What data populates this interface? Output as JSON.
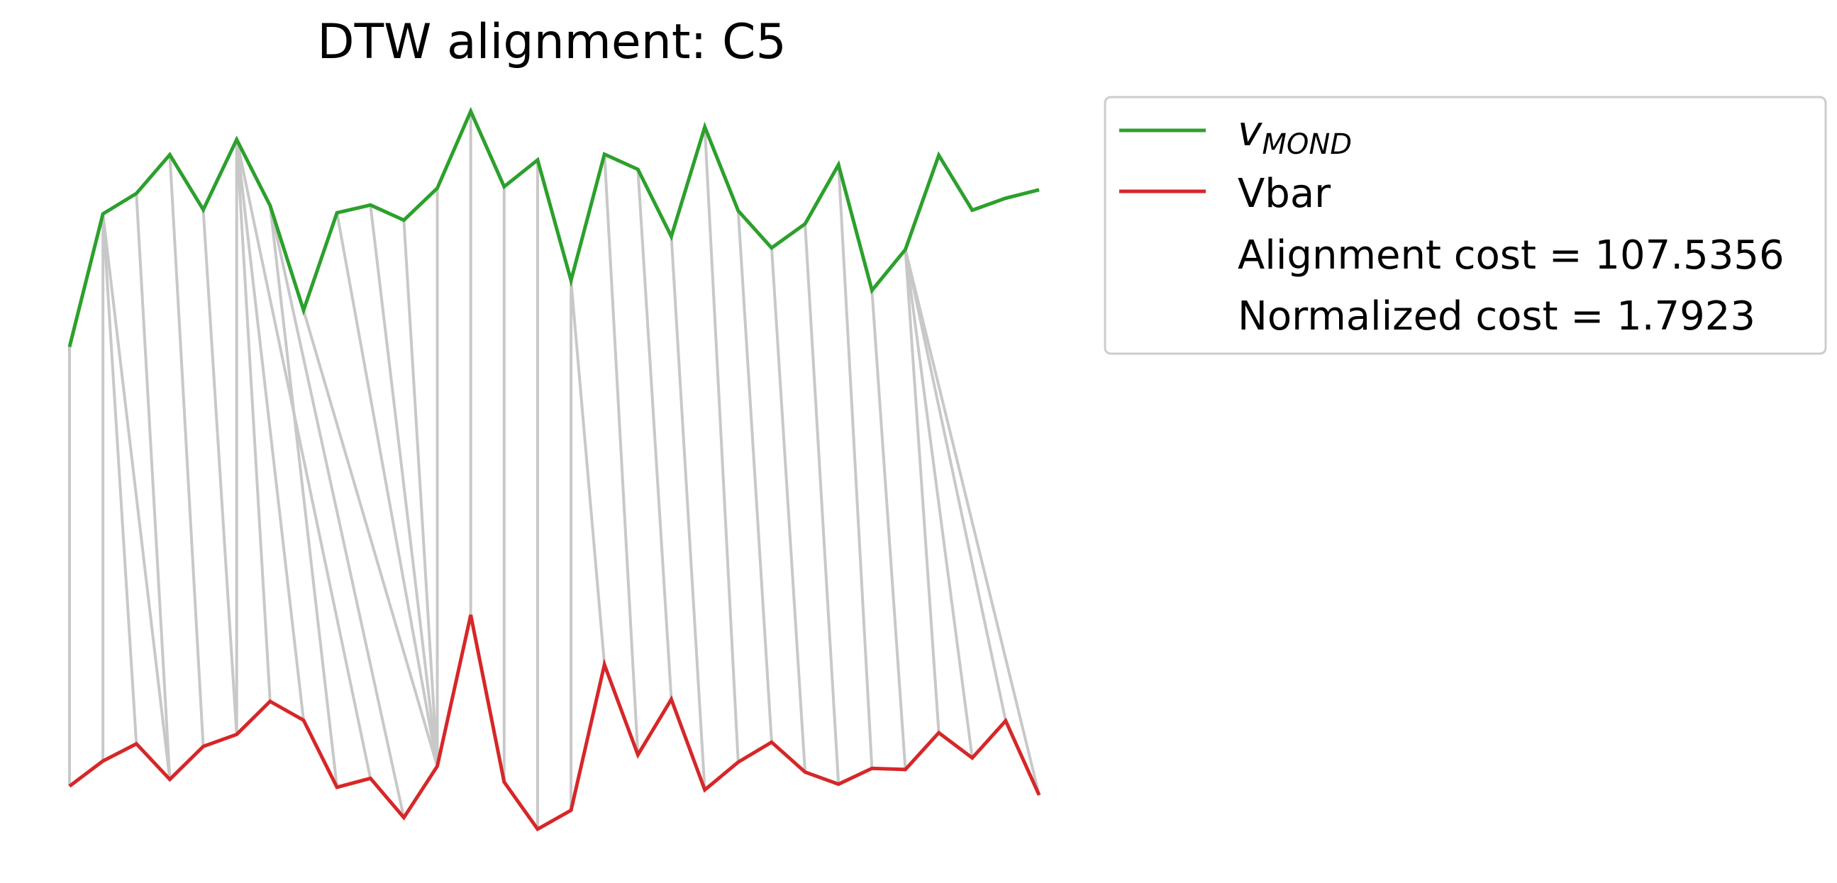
{
  "chart_data": {
    "type": "line",
    "title": "DTW alignment: C5",
    "xlabel": "",
    "ylabel": "",
    "grid": false,
    "axes_visible": false,
    "legend_placement": "outside-right-top",
    "x": [
      0,
      1,
      2,
      3,
      4,
      5,
      6,
      7,
      8,
      9,
      10,
      11,
      12,
      13,
      14,
      15,
      16,
      17,
      18,
      19,
      20,
      21,
      22,
      23,
      24,
      25,
      26,
      27,
      28,
      29
    ],
    "series": [
      {
        "name_main": "v",
        "name_sub": "MOND",
        "color": "#2ca02c",
        "values": [
          3.36,
          5.9,
          6.29,
          7.03,
          5.98,
          7.32,
          6.06,
          4.06,
          5.92,
          6.07,
          5.78,
          6.39,
          7.86,
          6.42,
          6.93,
          4.63,
          7.04,
          6.75,
          5.47,
          7.56,
          5.96,
          5.25,
          5.71,
          6.84,
          4.44,
          5.22,
          7.02,
          5.97,
          6.2,
          6.36
        ]
      },
      {
        "name": "Vbar",
        "color": "#d62728",
        "values": [
          -5.03,
          -4.55,
          -4.22,
          -4.9,
          -4.27,
          -4.04,
          -3.41,
          -3.77,
          -5.05,
          -4.88,
          -5.63,
          -4.65,
          -1.76,
          -4.95,
          -5.85,
          -5.49,
          -2.71,
          -4.43,
          -3.37,
          -5.1,
          -4.57,
          -4.19,
          -4.76,
          -4.99,
          -4.69,
          -4.71,
          -4.01,
          -4.49,
          -3.78,
          -5.2
        ]
      }
    ],
    "alignment_path": [
      [
        0,
        0
      ],
      [
        1,
        1
      ],
      [
        1,
        2
      ],
      [
        1,
        3
      ],
      [
        2,
        3
      ],
      [
        3,
        4
      ],
      [
        4,
        5
      ],
      [
        5,
        5
      ],
      [
        5,
        6
      ],
      [
        5,
        7
      ],
      [
        5,
        9
      ],
      [
        6,
        8
      ],
      [
        6,
        10
      ],
      [
        7,
        11
      ],
      [
        8,
        11
      ],
      [
        9,
        11
      ],
      [
        10,
        11
      ],
      [
        11,
        11
      ],
      [
        12,
        12
      ],
      [
        13,
        13
      ],
      [
        14,
        14
      ],
      [
        15,
        15
      ],
      [
        15,
        16
      ],
      [
        16,
        17
      ],
      [
        17,
        18
      ],
      [
        18,
        19
      ],
      [
        19,
        20
      ],
      [
        20,
        21
      ],
      [
        21,
        22
      ],
      [
        22,
        23
      ],
      [
        23,
        24
      ],
      [
        24,
        25
      ],
      [
        25,
        26
      ],
      [
        25,
        27
      ],
      [
        25,
        28
      ],
      [
        25,
        29
      ]
    ],
    "annotations": [
      "Alignment cost = 107.5356",
      "Normalized cost = 1.7923"
    ]
  }
}
